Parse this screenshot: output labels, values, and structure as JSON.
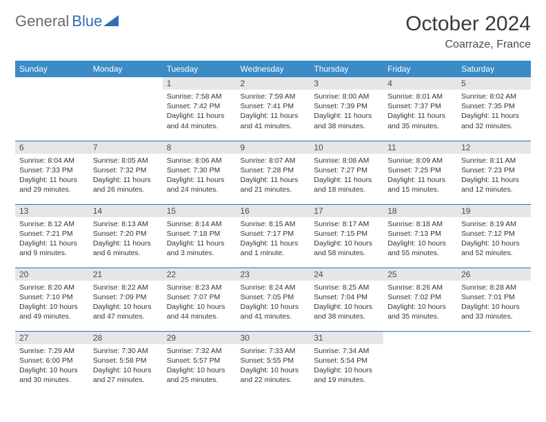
{
  "logo": {
    "part1": "General",
    "part2": "Blue"
  },
  "title": "October 2024",
  "location": "Coarraze, France",
  "colors": {
    "header_bg": "#3b8bc6",
    "header_text": "#ffffff",
    "daynum_bg": "#e6e6e6",
    "rule": "#2e6fb0",
    "logo_gray": "#6a6a6a",
    "logo_blue": "#2e6fb0"
  },
  "columns": [
    "Sunday",
    "Monday",
    "Tuesday",
    "Wednesday",
    "Thursday",
    "Friday",
    "Saturday"
  ],
  "days": {
    "1": {
      "sunrise": "7:58 AM",
      "sunset": "7:42 PM",
      "daylight": "11 hours and 44 minutes."
    },
    "2": {
      "sunrise": "7:59 AM",
      "sunset": "7:41 PM",
      "daylight": "11 hours and 41 minutes."
    },
    "3": {
      "sunrise": "8:00 AM",
      "sunset": "7:39 PM",
      "daylight": "11 hours and 38 minutes."
    },
    "4": {
      "sunrise": "8:01 AM",
      "sunset": "7:37 PM",
      "daylight": "11 hours and 35 minutes."
    },
    "5": {
      "sunrise": "8:02 AM",
      "sunset": "7:35 PM",
      "daylight": "11 hours and 32 minutes."
    },
    "6": {
      "sunrise": "8:04 AM",
      "sunset": "7:33 PM",
      "daylight": "11 hours and 29 minutes."
    },
    "7": {
      "sunrise": "8:05 AM",
      "sunset": "7:32 PM",
      "daylight": "11 hours and 26 minutes."
    },
    "8": {
      "sunrise": "8:06 AM",
      "sunset": "7:30 PM",
      "daylight": "11 hours and 24 minutes."
    },
    "9": {
      "sunrise": "8:07 AM",
      "sunset": "7:28 PM",
      "daylight": "11 hours and 21 minutes."
    },
    "10": {
      "sunrise": "8:08 AM",
      "sunset": "7:27 PM",
      "daylight": "11 hours and 18 minutes."
    },
    "11": {
      "sunrise": "8:09 AM",
      "sunset": "7:25 PM",
      "daylight": "11 hours and 15 minutes."
    },
    "12": {
      "sunrise": "8:11 AM",
      "sunset": "7:23 PM",
      "daylight": "11 hours and 12 minutes."
    },
    "13": {
      "sunrise": "8:12 AM",
      "sunset": "7:21 PM",
      "daylight": "11 hours and 9 minutes."
    },
    "14": {
      "sunrise": "8:13 AM",
      "sunset": "7:20 PM",
      "daylight": "11 hours and 6 minutes."
    },
    "15": {
      "sunrise": "8:14 AM",
      "sunset": "7:18 PM",
      "daylight": "11 hours and 3 minutes."
    },
    "16": {
      "sunrise": "8:15 AM",
      "sunset": "7:17 PM",
      "daylight": "11 hours and 1 minute."
    },
    "17": {
      "sunrise": "8:17 AM",
      "sunset": "7:15 PM",
      "daylight": "10 hours and 58 minutes."
    },
    "18": {
      "sunrise": "8:18 AM",
      "sunset": "7:13 PM",
      "daylight": "10 hours and 55 minutes."
    },
    "19": {
      "sunrise": "8:19 AM",
      "sunset": "7:12 PM",
      "daylight": "10 hours and 52 minutes."
    },
    "20": {
      "sunrise": "8:20 AM",
      "sunset": "7:10 PM",
      "daylight": "10 hours and 49 minutes."
    },
    "21": {
      "sunrise": "8:22 AM",
      "sunset": "7:09 PM",
      "daylight": "10 hours and 47 minutes."
    },
    "22": {
      "sunrise": "8:23 AM",
      "sunset": "7:07 PM",
      "daylight": "10 hours and 44 minutes."
    },
    "23": {
      "sunrise": "8:24 AM",
      "sunset": "7:05 PM",
      "daylight": "10 hours and 41 minutes."
    },
    "24": {
      "sunrise": "8:25 AM",
      "sunset": "7:04 PM",
      "daylight": "10 hours and 38 minutes."
    },
    "25": {
      "sunrise": "8:26 AM",
      "sunset": "7:02 PM",
      "daylight": "10 hours and 35 minutes."
    },
    "26": {
      "sunrise": "8:28 AM",
      "sunset": "7:01 PM",
      "daylight": "10 hours and 33 minutes."
    },
    "27": {
      "sunrise": "7:29 AM",
      "sunset": "6:00 PM",
      "daylight": "10 hours and 30 minutes."
    },
    "28": {
      "sunrise": "7:30 AM",
      "sunset": "5:58 PM",
      "daylight": "10 hours and 27 minutes."
    },
    "29": {
      "sunrise": "7:32 AM",
      "sunset": "5:57 PM",
      "daylight": "10 hours and 25 minutes."
    },
    "30": {
      "sunrise": "7:33 AM",
      "sunset": "5:55 PM",
      "daylight": "10 hours and 22 minutes."
    },
    "31": {
      "sunrise": "7:34 AM",
      "sunset": "5:54 PM",
      "daylight": "10 hours and 19 minutes."
    }
  },
  "layout": {
    "first_weekday_index": 2,
    "num_days": 31
  },
  "labels": {
    "sunrise": "Sunrise:",
    "sunset": "Sunset:",
    "daylight": "Daylight:"
  }
}
